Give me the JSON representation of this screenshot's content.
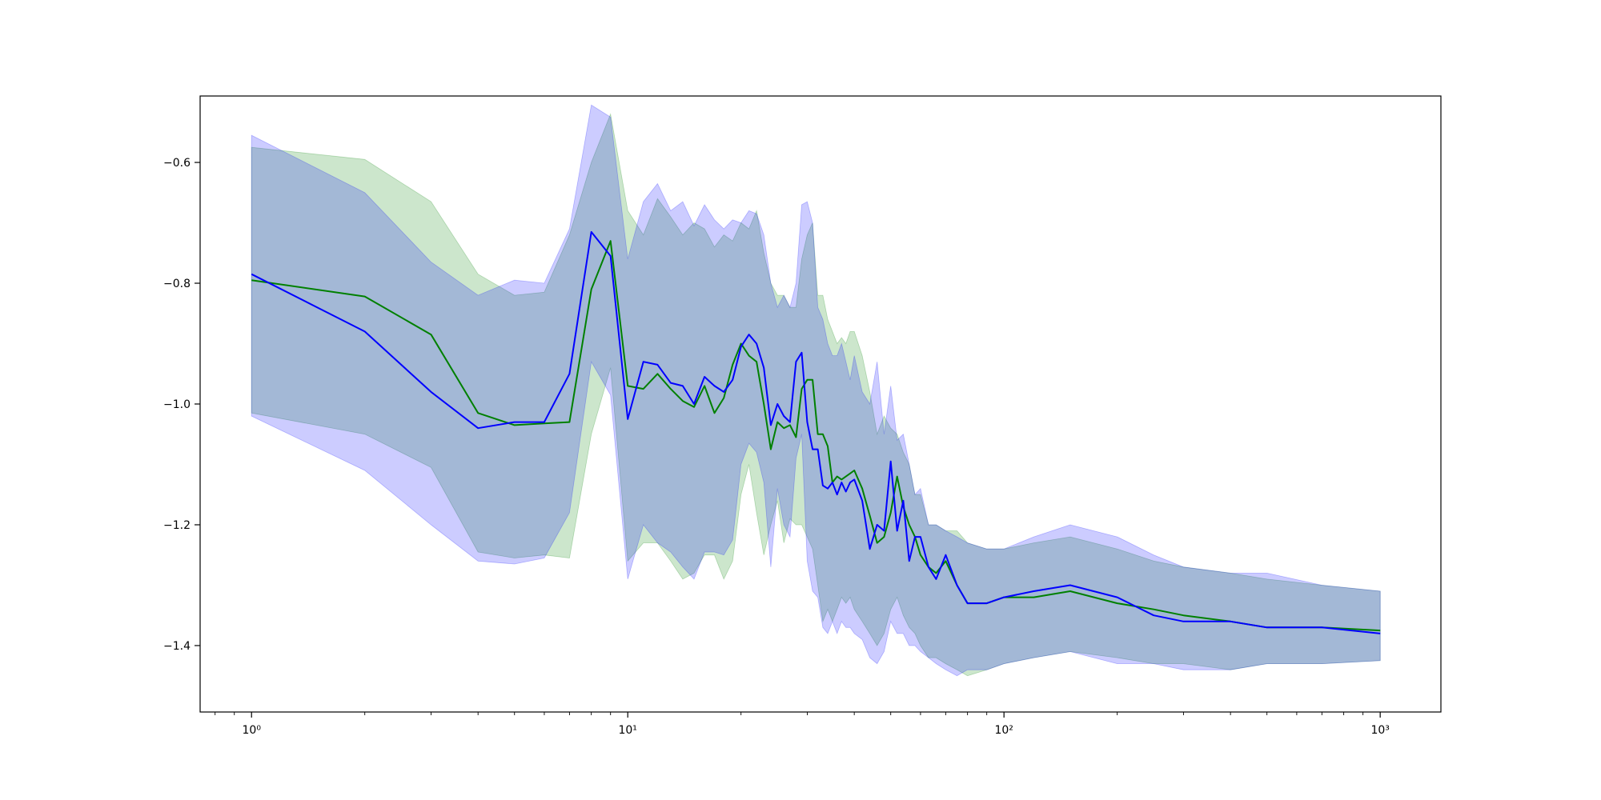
{
  "chart_data": {
    "type": "line",
    "title": "",
    "xlabel": "",
    "ylabel": "",
    "xscale": "log",
    "xlim": [
      0.73,
      1450
    ],
    "ylim": [
      -1.51,
      -0.49
    ],
    "grid": false,
    "legend": "none",
    "x_ticks": [
      {
        "value": 1,
        "label": "10⁰"
      },
      {
        "value": 10,
        "label": "10¹"
      },
      {
        "value": 100,
        "label": "10²"
      },
      {
        "value": 1000,
        "label": "10³"
      }
    ],
    "y_ticks": [
      {
        "value": -0.6,
        "label": "−0.6"
      },
      {
        "value": -0.8,
        "label": "−0.8"
      },
      {
        "value": -1.0,
        "label": "−1.0"
      },
      {
        "value": -1.2,
        "label": "−1.2"
      },
      {
        "value": -1.4,
        "label": "−1.4"
      }
    ],
    "series": [
      {
        "color": "#008000",
        "band_color": "#008000",
        "band_opacity": 0.2,
        "x": [
          1,
          2,
          3,
          4,
          5,
          6,
          7,
          8,
          9,
          10,
          11,
          12,
          13,
          14,
          15,
          16,
          17,
          18,
          19,
          20,
          21,
          22,
          23,
          24,
          25,
          26,
          27,
          28,
          29,
          30,
          31,
          32,
          33,
          34,
          35,
          36,
          37,
          38,
          39,
          40,
          42,
          44,
          46,
          48,
          50,
          52,
          54,
          56,
          58,
          60,
          63,
          66,
          70,
          75,
          80,
          90,
          100,
          120,
          150,
          200,
          250,
          300,
          400,
          500,
          700,
          1000
        ],
        "mean": [
          -0.795,
          -0.822,
          -0.885,
          -1.015,
          -1.035,
          -1.032,
          -1.03,
          -0.81,
          -0.73,
          -0.97,
          -0.975,
          -0.95,
          -0.975,
          -0.995,
          -1.005,
          -0.97,
          -1.015,
          -0.99,
          -0.935,
          -0.9,
          -0.92,
          -0.93,
          -1.0,
          -1.075,
          -1.03,
          -1.04,
          -1.035,
          -1.055,
          -0.975,
          -0.96,
          -0.96,
          -1.05,
          -1.05,
          -1.07,
          -1.13,
          -1.12,
          -1.125,
          -1.12,
          -1.115,
          -1.11,
          -1.14,
          -1.185,
          -1.23,
          -1.22,
          -1.18,
          -1.12,
          -1.17,
          -1.2,
          -1.22,
          -1.25,
          -1.27,
          -1.28,
          -1.26,
          -1.3,
          -1.33,
          -1.33,
          -1.32,
          -1.32,
          -1.31,
          -1.33,
          -1.34,
          -1.35,
          -1.36,
          -1.37,
          -1.37,
          -1.375
        ],
        "upper": [
          -0.575,
          -0.595,
          -0.665,
          -0.785,
          -0.82,
          -0.815,
          -0.72,
          -0.6,
          -0.52,
          -0.68,
          -0.72,
          -0.66,
          -0.69,
          -0.72,
          -0.7,
          -0.71,
          -0.74,
          -0.72,
          -0.73,
          -0.7,
          -0.71,
          -0.68,
          -0.75,
          -0.8,
          -0.82,
          -0.82,
          -0.84,
          -0.84,
          -0.76,
          -0.72,
          -0.7,
          -0.82,
          -0.82,
          -0.86,
          -0.88,
          -0.9,
          -0.89,
          -0.9,
          -0.88,
          -0.88,
          -0.92,
          -0.98,
          -1.05,
          -1.02,
          -1.04,
          -1.05,
          -1.08,
          -1.1,
          -1.15,
          -1.15,
          -1.2,
          -1.2,
          -1.21,
          -1.21,
          -1.23,
          -1.24,
          -1.24,
          -1.23,
          -1.22,
          -1.24,
          -1.26,
          -1.27,
          -1.28,
          -1.29,
          -1.3,
          -1.31
        ],
        "lower": [
          -1.015,
          -1.05,
          -1.105,
          -1.245,
          -1.255,
          -1.25,
          -1.255,
          -1.05,
          -0.94,
          -1.26,
          -1.23,
          -1.23,
          -1.26,
          -1.29,
          -1.28,
          -1.25,
          -1.25,
          -1.29,
          -1.26,
          -1.15,
          -1.1,
          -1.18,
          -1.25,
          -1.2,
          -1.16,
          -1.23,
          -1.19,
          -1.2,
          -1.2,
          -1.22,
          -1.24,
          -1.3,
          -1.36,
          -1.34,
          -1.36,
          -1.34,
          -1.32,
          -1.33,
          -1.32,
          -1.34,
          -1.36,
          -1.38,
          -1.4,
          -1.38,
          -1.34,
          -1.32,
          -1.35,
          -1.37,
          -1.38,
          -1.4,
          -1.42,
          -1.42,
          -1.43,
          -1.44,
          -1.45,
          -1.44,
          -1.43,
          -1.42,
          -1.41,
          -1.42,
          -1.43,
          -1.43,
          -1.44,
          -1.43,
          -1.43,
          -1.425
        ]
      },
      {
        "color": "#0000ff",
        "band_color": "#0000ff",
        "band_opacity": 0.2,
        "x": [
          1,
          2,
          3,
          4,
          5,
          6,
          7,
          8,
          9,
          10,
          11,
          12,
          13,
          14,
          15,
          16,
          17,
          18,
          19,
          20,
          21,
          22,
          23,
          24,
          25,
          26,
          27,
          28,
          29,
          30,
          31,
          32,
          33,
          34,
          35,
          36,
          37,
          38,
          39,
          40,
          42,
          44,
          46,
          48,
          50,
          52,
          54,
          56,
          58,
          60,
          63,
          66,
          70,
          75,
          80,
          90,
          100,
          120,
          150,
          200,
          250,
          300,
          400,
          500,
          700,
          1000
        ],
        "mean": [
          -0.785,
          -0.88,
          -0.98,
          -1.04,
          -1.03,
          -1.03,
          -0.95,
          -0.715,
          -0.755,
          -1.025,
          -0.93,
          -0.935,
          -0.965,
          -0.97,
          -1.0,
          -0.955,
          -0.97,
          -0.98,
          -0.96,
          -0.905,
          -0.885,
          -0.9,
          -0.94,
          -1.035,
          -1.0,
          -1.02,
          -1.03,
          -0.93,
          -0.915,
          -1.03,
          -1.075,
          -1.075,
          -1.135,
          -1.14,
          -1.13,
          -1.15,
          -1.13,
          -1.145,
          -1.13,
          -1.125,
          -1.16,
          -1.24,
          -1.2,
          -1.21,
          -1.095,
          -1.21,
          -1.16,
          -1.26,
          -1.22,
          -1.22,
          -1.27,
          -1.29,
          -1.25,
          -1.3,
          -1.33,
          -1.33,
          -1.32,
          -1.31,
          -1.3,
          -1.32,
          -1.35,
          -1.36,
          -1.36,
          -1.37,
          -1.37,
          -1.38
        ],
        "upper": [
          -0.555,
          -0.65,
          -0.765,
          -0.82,
          -0.795,
          -0.8,
          -0.71,
          -0.505,
          -0.525,
          -0.76,
          -0.665,
          -0.635,
          -0.68,
          -0.665,
          -0.705,
          -0.67,
          -0.695,
          -0.71,
          -0.695,
          -0.7,
          -0.68,
          -0.685,
          -0.72,
          -0.8,
          -0.84,
          -0.82,
          -0.84,
          -0.8,
          -0.67,
          -0.665,
          -0.7,
          -0.84,
          -0.86,
          -0.9,
          -0.92,
          -0.92,
          -0.9,
          -0.93,
          -0.96,
          -0.92,
          -0.98,
          -1.0,
          -0.93,
          -1.05,
          -0.97,
          -1.06,
          -1.05,
          -1.1,
          -1.15,
          -1.14,
          -1.2,
          -1.2,
          -1.21,
          -1.22,
          -1.23,
          -1.24,
          -1.24,
          -1.22,
          -1.2,
          -1.22,
          -1.25,
          -1.27,
          -1.28,
          -1.28,
          -1.3,
          -1.31
        ],
        "lower": [
          -1.02,
          -1.11,
          -1.2,
          -1.26,
          -1.265,
          -1.255,
          -1.18,
          -0.93,
          -0.985,
          -1.29,
          -1.2,
          -1.23,
          -1.245,
          -1.27,
          -1.29,
          -1.245,
          -1.245,
          -1.25,
          -1.225,
          -1.1,
          -1.065,
          -1.08,
          -1.13,
          -1.27,
          -1.14,
          -1.2,
          -1.22,
          -1.09,
          -1.05,
          -1.26,
          -1.31,
          -1.32,
          -1.37,
          -1.38,
          -1.36,
          -1.38,
          -1.36,
          -1.37,
          -1.37,
          -1.38,
          -1.39,
          -1.42,
          -1.43,
          -1.41,
          -1.36,
          -1.38,
          -1.38,
          -1.4,
          -1.4,
          -1.41,
          -1.42,
          -1.43,
          -1.44,
          -1.45,
          -1.44,
          -1.44,
          -1.43,
          -1.42,
          -1.41,
          -1.43,
          -1.43,
          -1.44,
          -1.44,
          -1.43,
          -1.43,
          -1.425
        ]
      }
    ]
  }
}
